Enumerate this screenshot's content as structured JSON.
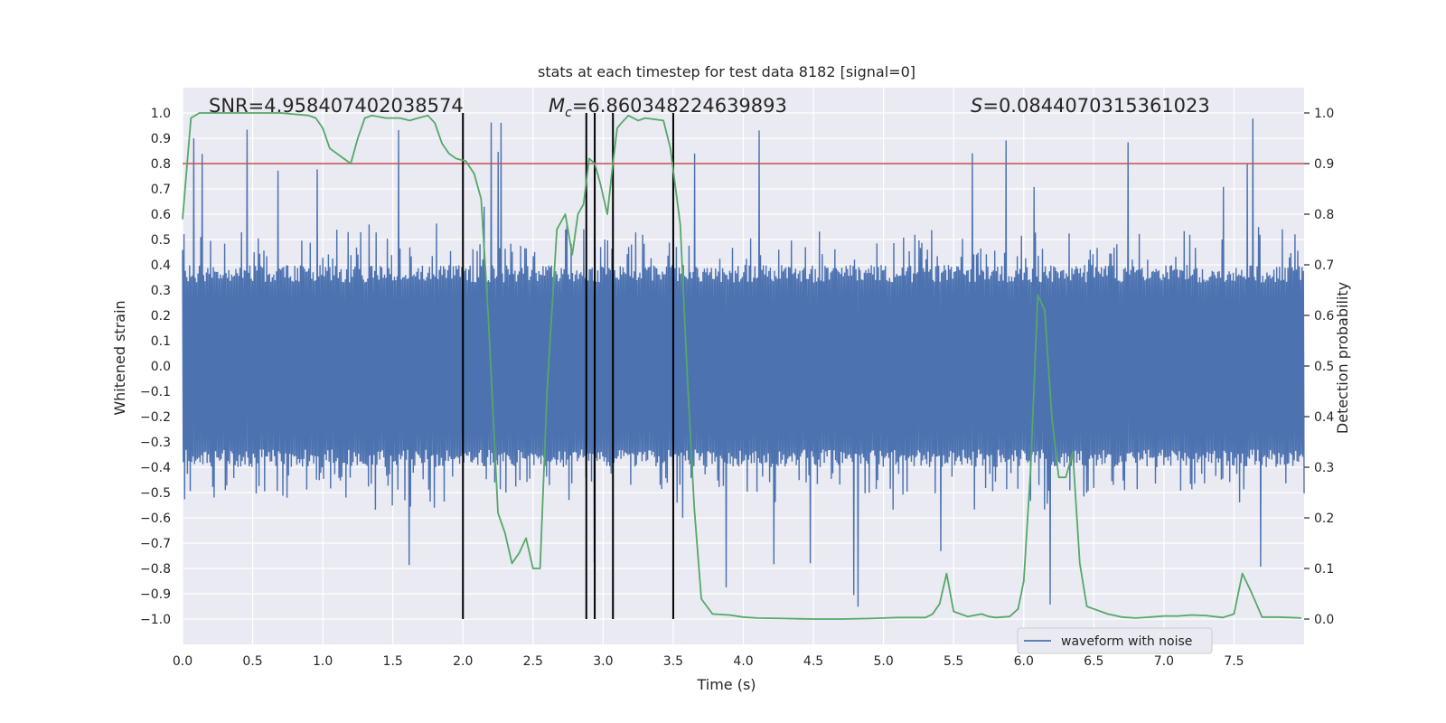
{
  "chart_data": {
    "type": "line",
    "title": "stats at each timestep for test data 8182 [signal=0]",
    "xlabel": "Time (s)",
    "ylabel_left": "Whitened strain",
    "ylabel_right": "Detection probability",
    "xlim": [
      0.0,
      8.0
    ],
    "ylim_left": [
      -1.1,
      1.1
    ],
    "ylim_right": [
      -0.05,
      1.05
    ],
    "x_ticks": [
      0.0,
      0.5,
      1.0,
      1.5,
      2.0,
      2.5,
      3.0,
      3.5,
      4.0,
      4.5,
      5.0,
      5.5,
      6.0,
      6.5,
      7.0,
      7.5
    ],
    "x_tick_labels": [
      "0.0",
      "0.5",
      "1.0",
      "1.5",
      "2.0",
      "2.5",
      "3.0",
      "3.5",
      "4.0",
      "4.5",
      "5.0",
      "5.5",
      "6.0",
      "6.5",
      "7.0",
      "7.5"
    ],
    "y_left_ticks": [
      1.0,
      0.9,
      0.8,
      0.7,
      0.6,
      0.5,
      0.4,
      0.3,
      0.2,
      0.1,
      0.0,
      -0.1,
      -0.2,
      -0.3,
      -0.4,
      -0.5,
      -0.6,
      -0.7,
      -0.8,
      -0.9,
      -1.0
    ],
    "y_left_tick_labels": [
      "1.0",
      "0.9",
      "0.8",
      "0.7",
      "0.6",
      "0.5",
      "0.4",
      "0.3",
      "0.2",
      "0.1",
      "0.0",
      "−0.1",
      "−0.2",
      "−0.3",
      "−0.4",
      "−0.5",
      "−0.6",
      "−0.7",
      "−0.8",
      "−0.9",
      "−1.0"
    ],
    "y_right_ticks": [
      1.0,
      0.9,
      0.8,
      0.7,
      0.6,
      0.5,
      0.4,
      0.3,
      0.2,
      0.1,
      0.0
    ],
    "y_right_tick_labels": [
      "1.0",
      "0.9",
      "0.8",
      "0.7",
      "0.6",
      "0.5",
      "0.4",
      "0.3",
      "0.2",
      "0.1",
      "0.0"
    ],
    "annotations": {
      "snr": "SNR=4.958407402038574",
      "mc_symbol": "M",
      "mc_sub": "c",
      "mc_value": "=6.860348224639893",
      "s_symbol": "S",
      "s_value": "=0.0844070315361023"
    },
    "threshold": {
      "axis": "right",
      "value": 0.9
    },
    "vertical_markers": [
      2.0,
      2.88,
      2.94,
      3.07,
      3.5
    ],
    "waveform": {
      "name": "waveform with noise",
      "approx_band": [
        -0.4,
        0.4
      ],
      "n_samples_estimated": 1600,
      "note": "noisy whitened strain time series, values mostly within +/-0.4 with spikes up to ~1.0 and down to ~-1.0"
    },
    "detection_probability": {
      "x": [
        0.0,
        0.06,
        0.12,
        0.2,
        0.3,
        0.5,
        0.7,
        0.9,
        0.95,
        1.0,
        1.05,
        1.2,
        1.25,
        1.3,
        1.35,
        1.45,
        1.55,
        1.62,
        1.68,
        1.75,
        1.8,
        1.85,
        1.9,
        1.95,
        2.02,
        2.08,
        2.13,
        2.18,
        2.25,
        2.3,
        2.35,
        2.4,
        2.45,
        2.5,
        2.55,
        2.6,
        2.67,
        2.73,
        2.78,
        2.82,
        2.86,
        2.9,
        2.94,
        2.98,
        3.03,
        3.07,
        3.1,
        3.13,
        3.18,
        3.25,
        3.3,
        3.43,
        3.48,
        3.55,
        3.6,
        3.65,
        3.7,
        3.78,
        3.9,
        4.0,
        4.1,
        4.3,
        4.5,
        4.7,
        4.9,
        5.0,
        5.1,
        5.3,
        5.35,
        5.4,
        5.45,
        5.5,
        5.6,
        5.7,
        5.75,
        5.8,
        5.9,
        5.96,
        6.0,
        6.05,
        6.1,
        6.15,
        6.2,
        6.25,
        6.3,
        6.35,
        6.4,
        6.45,
        6.5,
        6.6,
        6.7,
        6.8,
        6.9,
        7.0,
        7.1,
        7.2,
        7.3,
        7.42,
        7.5,
        7.56,
        7.62,
        7.7,
        7.8,
        7.9,
        7.98
      ],
      "y": [
        0.79,
        0.99,
        1.0,
        1.0,
        1.0,
        1.0,
        1.0,
        0.995,
        0.99,
        0.97,
        0.93,
        0.9,
        0.95,
        0.99,
        0.995,
        0.99,
        0.99,
        0.985,
        0.99,
        0.995,
        0.98,
        0.94,
        0.92,
        0.91,
        0.905,
        0.88,
        0.83,
        0.6,
        0.21,
        0.17,
        0.11,
        0.13,
        0.16,
        0.1,
        0.1,
        0.45,
        0.77,
        0.8,
        0.72,
        0.8,
        0.82,
        0.91,
        0.9,
        0.86,
        0.8,
        0.9,
        0.97,
        0.98,
        0.995,
        0.985,
        0.99,
        0.985,
        0.93,
        0.78,
        0.48,
        0.22,
        0.04,
        0.01,
        0.008,
        0.004,
        0.002,
        0.001,
        0.0,
        0.0,
        0.001,
        0.002,
        0.003,
        0.003,
        0.01,
        0.03,
        0.09,
        0.015,
        0.005,
        0.01,
        0.005,
        0.003,
        0.005,
        0.02,
        0.075,
        0.3,
        0.64,
        0.61,
        0.4,
        0.28,
        0.28,
        0.33,
        0.11,
        0.025,
        0.02,
        0.01,
        0.004,
        0.002,
        0.004,
        0.006,
        0.006,
        0.008,
        0.007,
        0.003,
        0.01,
        0.09,
        0.055,
        0.004,
        0.004,
        0.003,
        0.002
      ]
    },
    "legend": {
      "entries": [
        "waveform with noise"
      ],
      "placement": "lower right"
    },
    "grid": true
  },
  "colors": {
    "plot_background": "#eaeaf2",
    "grid": "#ffffff",
    "waveform": "#4c72b0",
    "probability": "#55a868",
    "threshold": "#c44e52",
    "markers": "#000000",
    "text": "#262626"
  }
}
